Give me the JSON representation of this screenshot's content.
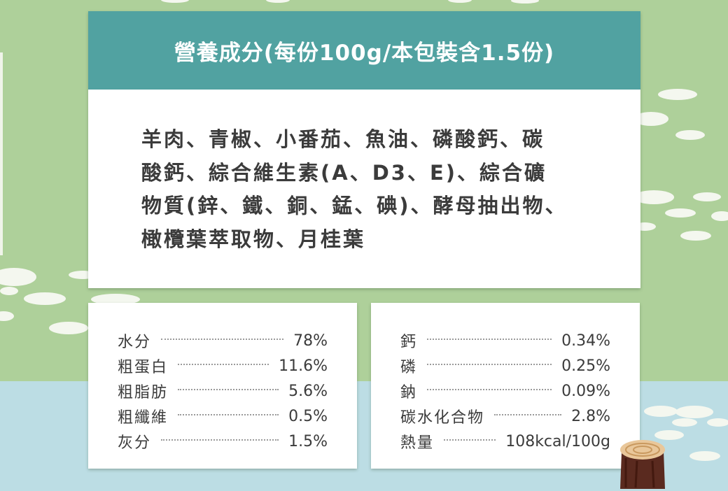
{
  "header": {
    "title": "營養成分(每份100g/本包裝含1.5份)"
  },
  "ingredients": {
    "lines": [
      "羊肉、青椒、小番茄、魚油、磷酸鈣、碳",
      "酸鈣、綜合維生素(A、D3、E)、綜合礦",
      "物質(鋅、鐵、銅、錳、碘)、酵母抽出物、",
      "橄欖葉萃取物、月桂葉"
    ]
  },
  "nutrition_left": [
    {
      "label": "水分",
      "value": "78%"
    },
    {
      "label": "粗蛋白",
      "value": "11.6%"
    },
    {
      "label": "粗脂肪",
      "value": "5.6%"
    },
    {
      "label": "粗纖維",
      "value": "0.5%"
    },
    {
      "label": "灰分",
      "value": "1.5%"
    }
  ],
  "nutrition_right": [
    {
      "label": "鈣",
      "value": "0.34%"
    },
    {
      "label": "磷",
      "value": "0.25%"
    },
    {
      "label": "鈉",
      "value": "0.09%"
    },
    {
      "label": "碳水化合物",
      "value": "2.8%"
    },
    {
      "label": "熱量",
      "value": "108kcal/100g"
    }
  ],
  "colors": {
    "header_teal": "#51a2a1",
    "bg_green": "#aed09a",
    "bg_blue": "#bcdde4",
    "text": "#3b3b3b"
  },
  "icons": [
    "tree-stump-icon"
  ]
}
